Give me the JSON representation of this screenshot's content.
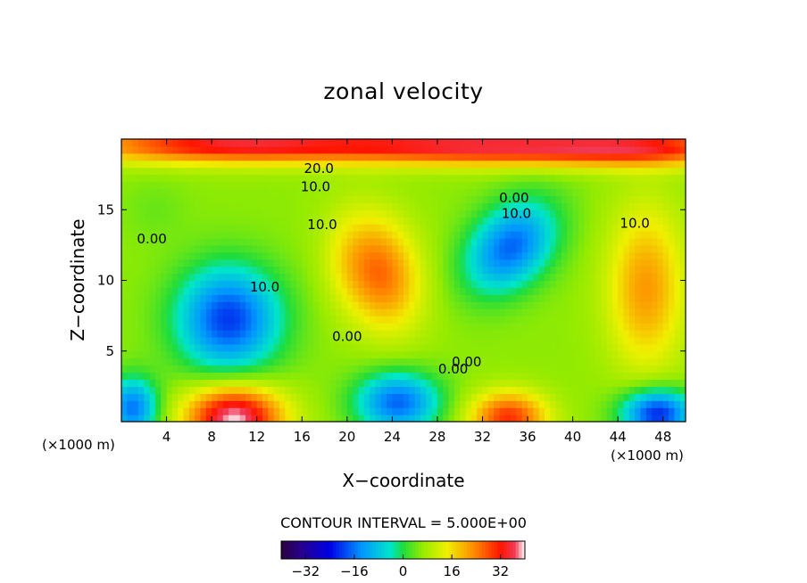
{
  "chart_data": {
    "type": "heatmap",
    "title": "zonal velocity",
    "xlabel": "X−coordinate",
    "ylabel": "Z−coordinate",
    "x_unit_left": "(×1000 m)",
    "x_unit_right": "(×1000 m)",
    "xlim": [
      0,
      50
    ],
    "ylim": [
      0,
      20
    ],
    "x_ticks": [
      4,
      8,
      12,
      16,
      20,
      24,
      28,
      32,
      36,
      40,
      44,
      48
    ],
    "y_ticks": [
      5,
      10,
      15
    ],
    "contour_interval_text": "CONTOUR INTERVAL = 5.000E+00",
    "colorbar": {
      "range": [
        -40,
        40
      ],
      "ticks": [
        -32,
        -16,
        0,
        16,
        32
      ],
      "tick_labels": [
        "−32",
        "−16",
        "0",
        "16",
        "32"
      ]
    },
    "contour_labels": [
      {
        "text": "20.0",
        "x": 17.5,
        "z": 17.9
      },
      {
        "text": "10.0",
        "x": 17.2,
        "z": 16.6
      },
      {
        "text": "0.00",
        "x": 34.8,
        "z": 15.8
      },
      {
        "text": "10.0",
        "x": 35.0,
        "z": 14.7
      },
      {
        "text": "0.00",
        "x": 2.7,
        "z": 12.9
      },
      {
        "text": "10.0",
        "x": 17.8,
        "z": 13.9
      },
      {
        "text": "10.0",
        "x": 45.5,
        "z": 14.0
      },
      {
        "text": "10.0",
        "x": 12.7,
        "z": 9.5
      },
      {
        "text": "0.00",
        "x": 20.0,
        "z": 6.0
      },
      {
        "text": "0.00",
        "x": 30.6,
        "z": 4.2
      },
      {
        "text": "0.00",
        "x": 29.4,
        "z": 3.7
      }
    ],
    "field_extrema": [
      {
        "x": 22.8,
        "z": 10.6,
        "value": 26,
        "sx": 2.4,
        "sz": 3.0,
        "rot": -0.55
      },
      {
        "x": 10.0,
        "z": 0.3,
        "value": 40,
        "sx": 3.0,
        "sz": 1.6,
        "rot": 0
      },
      {
        "x": 34.3,
        "z": 0.3,
        "value": 30,
        "sx": 2.4,
        "sz": 1.3,
        "rot": 0
      },
      {
        "x": 10.0,
        "z": 19.6,
        "value": 34,
        "sx": 10.0,
        "sz": 0.9,
        "rot": 0
      },
      {
        "x": 45.5,
        "z": 19.4,
        "value": 32,
        "sx": 8.0,
        "sz": 0.9,
        "rot": 0
      },
      {
        "x": 30.0,
        "z": 19.5,
        "value": 28,
        "sx": 8.0,
        "sz": 0.9,
        "rot": 0
      },
      {
        "x": 46.5,
        "z": 9.5,
        "value": 22,
        "sx": 2.4,
        "sz": 4.0,
        "rot": 0
      },
      {
        "x": 9.5,
        "z": 7.3,
        "value": -20,
        "sx": 3.2,
        "sz": 2.6,
        "rot": 0
      },
      {
        "x": 34.5,
        "z": 12.4,
        "value": -17,
        "sx": 3.0,
        "sz": 2.0,
        "rot": -0.5
      },
      {
        "x": 24.5,
        "z": 1.4,
        "value": -17,
        "sx": 2.6,
        "sz": 1.5,
        "rot": 0
      },
      {
        "x": 47.5,
        "z": 0.6,
        "value": -22,
        "sx": 2.2,
        "sz": 1.2,
        "rot": 0
      },
      {
        "x": 1.0,
        "z": 1.0,
        "value": -16,
        "sx": 1.6,
        "sz": 1.5,
        "rot": 0
      },
      {
        "x": 19.5,
        "z": 11.5,
        "value": 8,
        "sx": 1.4,
        "sz": 2.5,
        "rot": 0
      },
      {
        "x": 3.0,
        "z": 15.0,
        "value": 4,
        "sx": 2.0,
        "sz": 1.5,
        "rot": 0
      }
    ]
  }
}
